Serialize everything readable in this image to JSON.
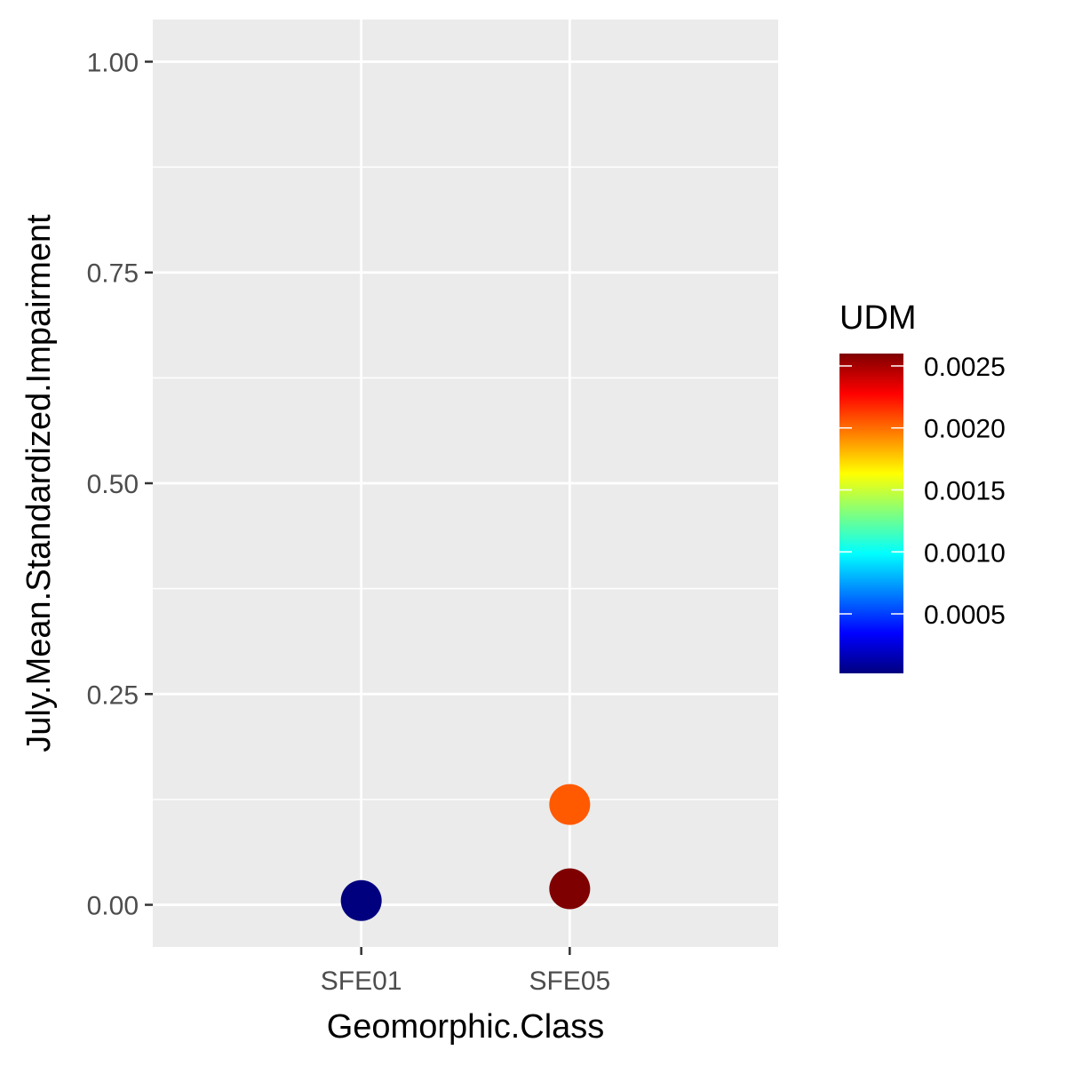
{
  "chart_data": {
    "type": "scatter",
    "title": "",
    "xlabel": "Geomorphic.Class",
    "ylabel": "July.Mean.Standardized.Impairment",
    "categories": [
      "SFE01",
      "SFE05"
    ],
    "y_ticks": [
      "0.00",
      "0.25",
      "0.50",
      "0.75",
      "1.00"
    ],
    "ylim": [
      -0.05,
      1.05
    ],
    "grid": true,
    "points": [
      {
        "x": "SFE01",
        "y": 0.005,
        "udm": 2e-05
      },
      {
        "x": "SFE05",
        "y": 0.119,
        "udm": 0.00205
      },
      {
        "x": "SFE05",
        "y": 0.019,
        "udm": 0.0026
      }
    ],
    "color_scale": {
      "title": "UDM",
      "min": 2e-05,
      "max": 0.0026,
      "tick_values": [
        0.0005,
        0.001,
        0.0015,
        0.002,
        0.0025
      ],
      "tick_labels": [
        "0.0005",
        "0.0010",
        "0.0015",
        "0.0020",
        "0.0025"
      ],
      "colors": [
        "#00007F",
        "#0000FF",
        "#007FFF",
        "#00FFFF",
        "#7FFF7F",
        "#FFFF00",
        "#FF7F00",
        "#FF0000",
        "#7F0000"
      ]
    },
    "legend_position": "right",
    "panel_background": "#EBEBEB",
    "grid_color": "#FFFFFF"
  }
}
